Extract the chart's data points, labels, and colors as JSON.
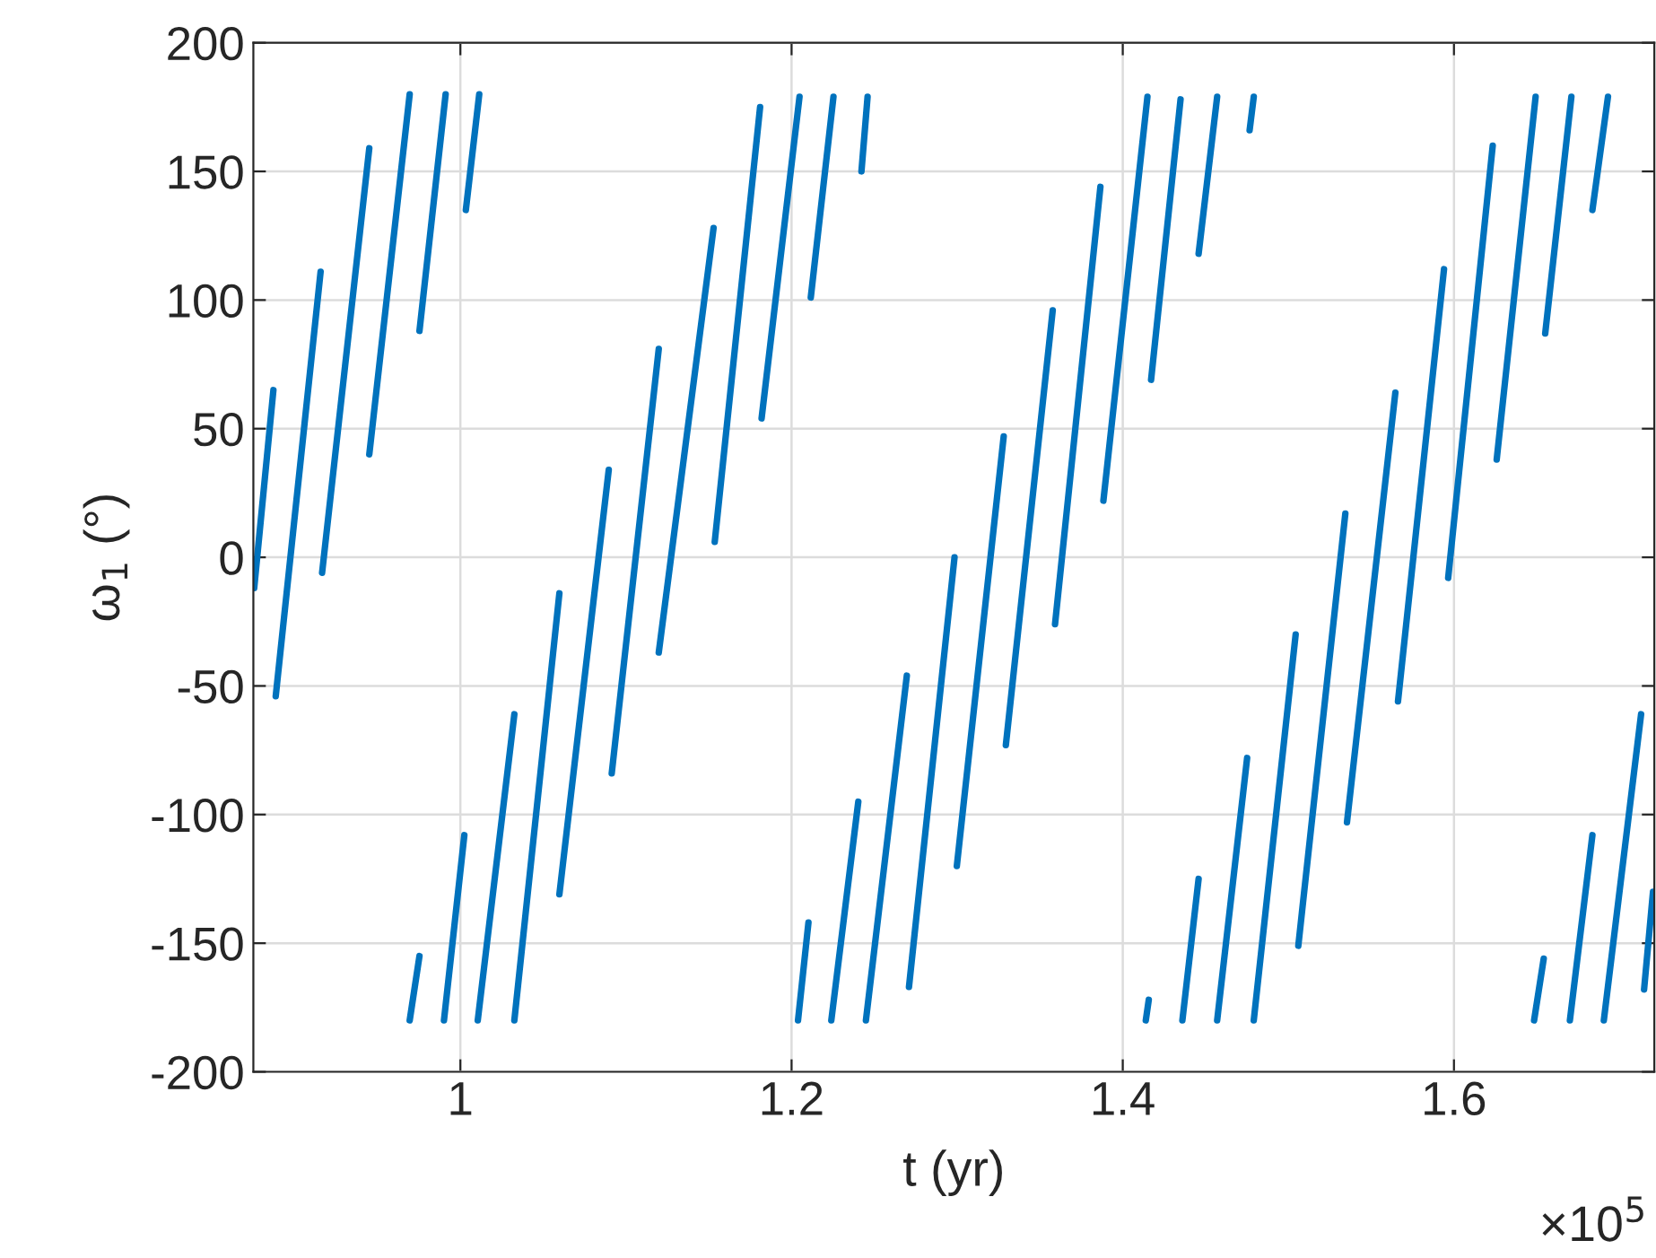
{
  "chart_data": {
    "type": "line",
    "xlabel": "t (yr)",
    "ylabel": "ω$_{1}$ (°)",
    "annotations": [
      "×10$^{5}$"
    ],
    "series": [
      {
        "color": "#0072bd",
        "x": [
          0.8755,
          0.8871,
          null,
          0.8885,
          0.9156,
          null,
          0.9165,
          0.945,
          null,
          0.945,
          0.9694,
          null,
          0.9694,
          0.9753,
          null,
          0.9753,
          0.9911,
          null,
          0.9901,
          1.0024,
          null,
          1.0033,
          1.0114,
          null,
          1.0105,
          1.0326,
          null,
          1.0326,
          1.0598,
          null,
          1.0598,
          1.0896,
          null,
          1.0914,
          1.1198,
          null,
          1.1198,
          1.1529,
          null,
          1.1536,
          1.181,
          null,
          1.1819,
          1.2048,
          null,
          1.2039,
          1.2102,
          null,
          1.2116,
          1.2253,
          null,
          1.224,
          1.2403,
          null,
          1.2422,
          1.2459,
          null,
          1.2449,
          1.2696,
          null,
          1.2709,
          1.2984,
          null,
          1.2998,
          1.3281,
          null,
          1.3294,
          1.3577,
          null,
          1.3591,
          1.3865,
          null,
          1.3883,
          1.4149,
          null,
          1.4139,
          1.4157,
          null,
          1.4171,
          1.4349,
          null,
          1.436,
          1.4458,
          null,
          1.4458,
          1.457,
          null,
          1.457,
          1.4751,
          null,
          1.4766,
          1.4791,
          null,
          1.4791,
          1.5044,
          null,
          1.506,
          1.5344,
          null,
          1.5354,
          1.5646,
          null,
          1.5662,
          1.594,
          null,
          1.5965,
          1.6234,
          null,
          1.6258,
          1.6493,
          null,
          1.6484,
          1.6542,
          null,
          1.6551,
          1.6709,
          null,
          1.67,
          1.6836,
          null,
          1.6836,
          1.693,
          null,
          1.6905,
          1.713,
          null,
          1.7148,
          1.7202
        ],
        "values": [
          -12,
          65,
          null,
          -54,
          111,
          null,
          -6,
          159,
          null,
          40,
          180,
          null,
          -180,
          -155,
          null,
          88,
          180,
          null,
          -180,
          -108,
          null,
          135,
          180,
          null,
          -180,
          -61,
          null,
          -180,
          -14,
          null,
          -131,
          34,
          null,
          -84,
          81,
          null,
          -37,
          128,
          null,
          6,
          175,
          null,
          54,
          179,
          null,
          -180,
          -142,
          null,
          101,
          179,
          null,
          -180,
          -95,
          null,
          150,
          179,
          null,
          -180,
          -46,
          null,
          -167,
          0,
          null,
          -120,
          47,
          null,
          -73,
          96,
          null,
          -26,
          144,
          null,
          22,
          179,
          null,
          -180,
          -172,
          null,
          69,
          178,
          null,
          -180,
          -125,
          null,
          118,
          179,
          null,
          -180,
          -78,
          null,
          166,
          179,
          null,
          -180,
          -30,
          null,
          -151,
          17,
          null,
          -103,
          64,
          null,
          -56,
          112,
          null,
          -8,
          160,
          null,
          38,
          179,
          null,
          -180,
          -156,
          null,
          87,
          179,
          null,
          -180,
          -108,
          null,
          135,
          179,
          null,
          -180,
          -61,
          null,
          -168,
          -130
        ]
      }
    ],
    "xlim": [
      0.875,
      1.721
    ],
    "xticks": [
      1,
      1.2,
      1.4,
      1.6
    ],
    "ylim": [
      -200,
      200
    ],
    "yticks": [
      -200,
      -150,
      -100,
      -50,
      0,
      50,
      100,
      150,
      200
    ],
    "grid": true,
    "line_style": "solid"
  }
}
